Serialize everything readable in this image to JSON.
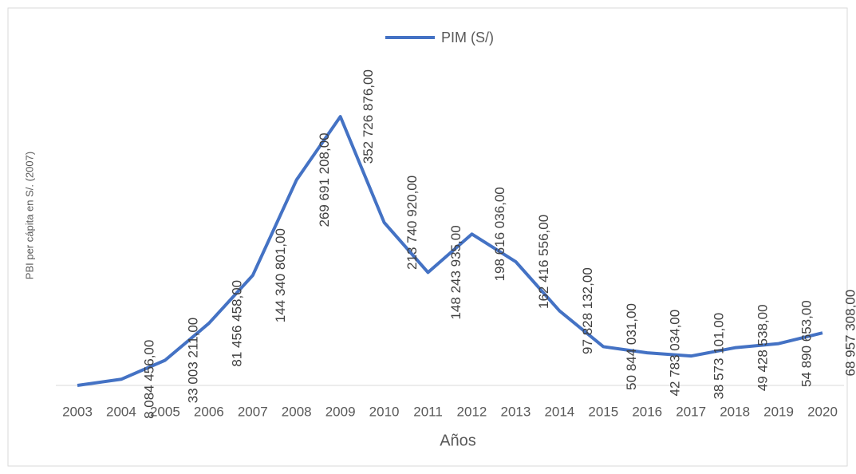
{
  "chart_data": {
    "type": "line",
    "y_axis_label": "PBI per cápita en S/. (2007)",
    "x_axis_label": "Años",
    "categories": [
      "2003",
      "2004",
      "2005",
      "2006",
      "2007",
      "2008",
      "2009",
      "2010",
      "2011",
      "2012",
      "2013",
      "2014",
      "2015",
      "2016",
      "2017",
      "2018",
      "2019",
      "2020"
    ],
    "series": [
      {
        "name": "PIM (S/)",
        "color": "#4472c4",
        "values": [
          0,
          8084456,
          33003211,
          81456458,
          144340801,
          269691208,
          352726876,
          213740920,
          148243935,
          198616036,
          162416556,
          97828132,
          50844031,
          42783034,
          38573101,
          49428538,
          54890653,
          68957308
        ],
        "value_labels": [
          null,
          "8 084 456,00",
          "33 003 211,00",
          "81 456 458,00",
          "144 340 801,00",
          "269 691 208,00",
          "352 726 876,00",
          "213 740 920,00",
          "148 243 935,00",
          "198 616 036,00",
          "162 416 556,00",
          "97 828 132,00",
          "50 844 031,00",
          "42 783 034,00",
          "38 573 101,00",
          "49 428 538,00",
          "54 890 653,00",
          "68 957 308,00"
        ]
      }
    ],
    "ylim": [
      0,
      400000000
    ],
    "legend": "top"
  }
}
